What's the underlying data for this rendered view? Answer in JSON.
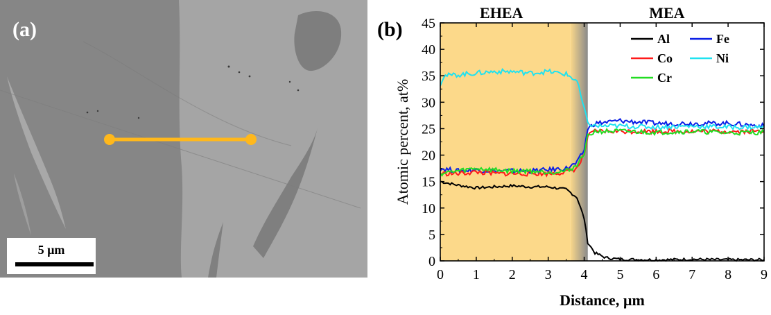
{
  "panel_a": {
    "label": "(a)",
    "scale_bar_label": "5 µm",
    "line_color": "#ffb81c"
  },
  "panel_b": {
    "label": "(b)",
    "region_left_label": "EHEA",
    "region_right_label": "MEA",
    "region_fill": "#fcd98a"
  },
  "chart_data": {
    "type": "line",
    "xlabel": "Distance, µm",
    "ylabel": "Atomic percent, at%",
    "xlim": [
      0,
      9
    ],
    "ylim": [
      0,
      45
    ],
    "xticks": [
      0,
      1,
      2,
      3,
      4,
      5,
      6,
      7,
      8,
      9
    ],
    "yticks": [
      0,
      5,
      10,
      15,
      20,
      25,
      30,
      35,
      40,
      45
    ],
    "grid": false,
    "legend_position": "top-right",
    "shaded_region_x": [
      0,
      4.1
    ],
    "series": [
      {
        "name": "Al",
        "color": "#000000",
        "x": [
          0,
          0.5,
          1,
          1.5,
          2,
          2.5,
          3,
          3.5,
          3.8,
          4.0,
          4.1,
          4.3,
          4.6,
          5,
          6,
          7,
          8,
          9
        ],
        "y": [
          15,
          14.3,
          13.8,
          14,
          14.2,
          14,
          14,
          13.5,
          12,
          8,
          3.5,
          1.5,
          0.6,
          0.3,
          0.2,
          0.3,
          0.2,
          0.2
        ]
      },
      {
        "name": "Fe",
        "color": "#0a1ee6",
        "x": [
          0,
          0.5,
          1,
          1.5,
          2,
          2.5,
          3,
          3.5,
          3.8,
          4.0,
          4.1,
          4.3,
          5,
          6,
          7,
          8,
          9
        ],
        "y": [
          17.5,
          17,
          17.2,
          17,
          17,
          17,
          17.2,
          17.5,
          18.5,
          21,
          25,
          26,
          26.5,
          26,
          26,
          26,
          25.5
        ]
      },
      {
        "name": "Co",
        "color": "#ff1a1a",
        "x": [
          0,
          0.5,
          1,
          1.5,
          2,
          2.5,
          3,
          3.5,
          3.8,
          4.0,
          4.1,
          4.3,
          5,
          6,
          7,
          8,
          9
        ],
        "y": [
          16.5,
          16.5,
          16.8,
          16.5,
          16.5,
          16.5,
          16.5,
          16.8,
          17.5,
          20,
          23.5,
          24.5,
          24.5,
          24.5,
          24.5,
          24.5,
          24.5
        ]
      },
      {
        "name": "Ni",
        "color": "#1fe2f0",
        "x": [
          0,
          0.1,
          0.5,
          1,
          1.5,
          2,
          2.5,
          3,
          3.3,
          3.5,
          3.8,
          3.95,
          4.1,
          4.3,
          5,
          6,
          7,
          8,
          9
        ],
        "y": [
          33.5,
          35,
          35.2,
          35.5,
          35.8,
          35.8,
          35.5,
          35.8,
          35.5,
          35.3,
          34,
          30,
          26,
          25.5,
          25.5,
          25.3,
          25.5,
          25.3,
          25.3
        ]
      },
      {
        "name": "Cr",
        "color": "#22dd22",
        "x": [
          0,
          0.5,
          1,
          1.5,
          2,
          2.5,
          3,
          3.5,
          3.8,
          4.0,
          4.1,
          4.3,
          5,
          6,
          7,
          8,
          9
        ],
        "y": [
          16.5,
          17,
          17.5,
          17.2,
          17,
          17,
          16.8,
          17,
          18,
          20.5,
          23.5,
          24.5,
          24.5,
          24.3,
          24.5,
          24.2,
          24.3
        ]
      }
    ]
  }
}
